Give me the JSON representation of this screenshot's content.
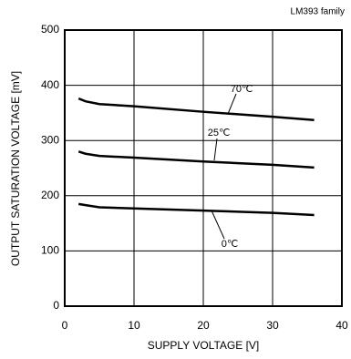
{
  "chart_data": {
    "type": "line",
    "subtitle": "LM393 family",
    "x_label": "SUPPLY VOLTAGE [V]",
    "y_label": "OUTPUT SATURATION VOLTAGE [mV]",
    "x": [
      2,
      3,
      5,
      10,
      20,
      30,
      36
    ],
    "series": [
      {
        "name": "70℃",
        "color": "#000000",
        "values": [
          376,
          371,
          366,
          362,
          352,
          343,
          337
        ]
      },
      {
        "name": "25℃",
        "color": "#000000",
        "values": [
          280,
          276,
          272,
          269,
          262,
          256,
          251
        ]
      },
      {
        "name": "0℃",
        "color": "#000000",
        "values": [
          185,
          183,
          179,
          177,
          173,
          169,
          165
        ]
      }
    ],
    "xlim": [
      0,
      40
    ],
    "xticks": [
      0,
      10,
      20,
      30,
      40
    ],
    "ylim": [
      0,
      500
    ],
    "yticks": [
      0,
      100,
      200,
      300,
      400,
      500
    ],
    "grid": true
  }
}
